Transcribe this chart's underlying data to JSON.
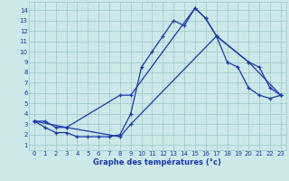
{
  "xlabel": "Graphe des températures (°c)",
  "bg_color": "#cce8e8",
  "line_color": "#1a3aad",
  "grid_color": "#9ec8c8",
  "x_ticks": [
    0,
    1,
    2,
    3,
    4,
    5,
    6,
    7,
    8,
    9,
    10,
    11,
    12,
    13,
    14,
    15,
    16,
    17,
    18,
    19,
    20,
    21,
    22,
    23
  ],
  "y_ticks": [
    1,
    2,
    3,
    4,
    5,
    6,
    7,
    8,
    9,
    10,
    11,
    12,
    13,
    14
  ],
  "xlim": [
    -0.5,
    23.5
  ],
  "ylim": [
    0.5,
    14.8
  ],
  "line1_x": [
    0,
    1,
    2,
    3,
    4,
    5,
    6,
    7,
    8,
    9,
    10,
    11,
    12,
    13,
    14,
    15,
    16,
    17,
    18,
    19,
    20,
    21,
    22,
    23
  ],
  "line1_y": [
    3.3,
    2.7,
    2.2,
    2.2,
    1.8,
    1.8,
    1.8,
    1.8,
    2.0,
    4.0,
    8.5,
    10.0,
    11.5,
    13.0,
    12.5,
    14.2,
    13.2,
    11.5,
    9.0,
    8.5,
    6.5,
    5.8,
    5.5,
    5.8
  ],
  "line2_x": [
    0,
    1,
    2,
    3,
    8,
    9,
    15,
    16,
    17,
    20,
    21,
    22,
    23
  ],
  "line2_y": [
    3.3,
    3.3,
    2.7,
    2.7,
    5.8,
    5.8,
    14.2,
    13.2,
    11.5,
    9.0,
    8.5,
    6.5,
    5.8
  ],
  "line3_x": [
    0,
    3,
    8,
    9,
    17,
    20,
    23
  ],
  "line3_y": [
    3.3,
    2.7,
    1.8,
    3.0,
    11.5,
    9.0,
    5.8
  ]
}
